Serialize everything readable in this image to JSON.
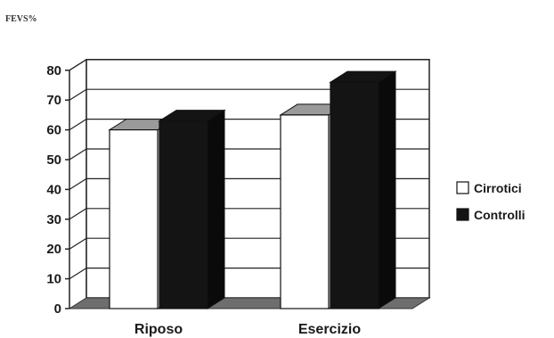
{
  "chart_data": {
    "type": "bar",
    "title": "",
    "ylabel": "FEVS%",
    "xlabel": "",
    "categories": [
      "Riposo",
      "Esercizio"
    ],
    "series": [
      {
        "name": "Cirrotici",
        "values": [
          60,
          65
        ],
        "color": "#ffffff",
        "top_color": "#9a9a9a"
      },
      {
        "name": "Controlli",
        "values": [
          63,
          76
        ],
        "color": "#141414",
        "top_color": "#141414"
      }
    ],
    "ylim": [
      0,
      80
    ],
    "yticks": [
      0,
      10,
      20,
      30,
      40,
      50,
      60,
      70,
      80
    ],
    "grid": true,
    "legend_position": "right",
    "style": "3d-column"
  }
}
